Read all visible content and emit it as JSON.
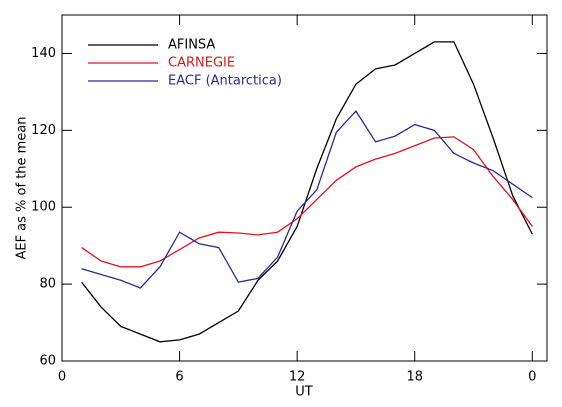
{
  "chart_data": {
    "type": "line",
    "xlabel": "UT",
    "ylabel": "AEF as % of the mean",
    "x": [
      1,
      2,
      3,
      4,
      5,
      6,
      7,
      8,
      9,
      10,
      11,
      12,
      13,
      14,
      15,
      16,
      17,
      18,
      19,
      20,
      21,
      22,
      23,
      24
    ],
    "series": [
      {
        "name": "AFINSA",
        "color": "#000000",
        "values": [
          80.5,
          74,
          69,
          67,
          65,
          65.5,
          67,
          70,
          73,
          81,
          86,
          95,
          110,
          123,
          132,
          136,
          137,
          140,
          143,
          143,
          132,
          118,
          103,
          93
        ]
      },
      {
        "name": "CARNEGIE",
        "color": "#e8101e",
        "values": [
          89.5,
          86,
          84.5,
          84.5,
          86,
          89,
          92,
          93.5,
          93.3,
          92.8,
          93.5,
          97,
          102,
          107,
          110.5,
          112.5,
          114,
          116,
          118,
          118.3,
          115,
          108,
          102,
          95
        ]
      },
      {
        "name": "EACF (Antarctica)",
        "color": "#2a2a9a",
        "values": [
          84,
          82.5,
          81,
          79,
          84.5,
          93.5,
          90.5,
          89.5,
          80.5,
          81.5,
          87,
          99,
          104.5,
          119.5,
          125,
          117,
          118.5,
          121.5,
          120,
          114,
          111.5,
          109.5,
          106,
          102.5
        ]
      }
    ],
    "xlim": [
      0,
      24.75
    ],
    "xticks": [
      0,
      6,
      12,
      18,
      {
        "value": 24,
        "label": "0"
      }
    ],
    "ylim": [
      60,
      150
    ],
    "yticks": [
      60,
      80,
      100,
      120,
      140
    ],
    "legend": "top-left"
  }
}
